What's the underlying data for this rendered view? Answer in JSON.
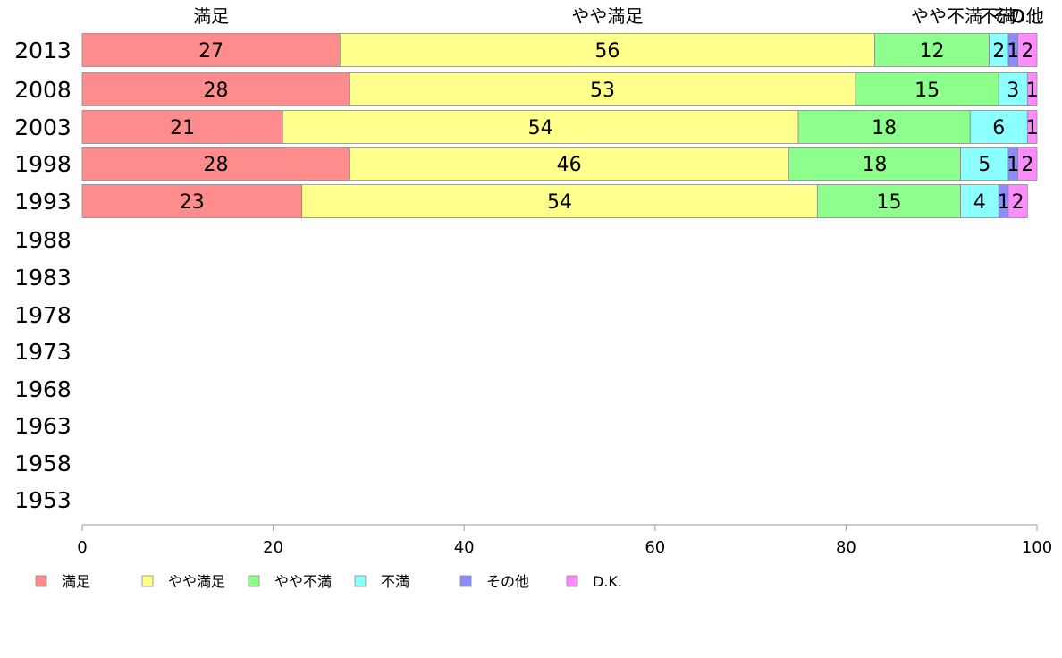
{
  "chart_data": {
    "type": "bar",
    "orientation": "horizontal",
    "stacked": true,
    "categories": [
      "2013",
      "2008",
      "2003",
      "1998",
      "1993",
      "1988",
      "1983",
      "1978",
      "1973",
      "1968",
      "1963",
      "1958",
      "1953"
    ],
    "series": [
      {
        "name": "満足",
        "color": "#ff8c8c",
        "values": [
          27,
          28,
          21,
          28,
          23,
          null,
          null,
          null,
          null,
          null,
          null,
          null,
          null
        ]
      },
      {
        "name": "やや満足",
        "color": "#ffff8c",
        "values": [
          56,
          53,
          54,
          46,
          54,
          null,
          null,
          null,
          null,
          null,
          null,
          null,
          null
        ]
      },
      {
        "name": "やや不満",
        "color": "#8cff8c",
        "values": [
          12,
          15,
          18,
          18,
          15,
          null,
          null,
          null,
          null,
          null,
          null,
          null,
          null
        ]
      },
      {
        "name": "不満",
        "color": "#8cffff",
        "values": [
          2,
          3,
          6,
          5,
          4,
          null,
          null,
          null,
          null,
          null,
          null,
          null,
          null
        ]
      },
      {
        "name": "その他",
        "color": "#8c8cff",
        "values": [
          1,
          0,
          0,
          1,
          1,
          null,
          null,
          null,
          null,
          null,
          null,
          null,
          null
        ]
      },
      {
        "name": "D.K.",
        "color": "#ff8cff",
        "values": [
          2,
          1,
          1,
          2,
          2,
          null,
          null,
          null,
          null,
          null,
          null,
          null,
          null
        ]
      }
    ],
    "top_labels": [
      "満足",
      "やや満足",
      "やや不満",
      "不満",
      "その他",
      "D..."
    ],
    "x_ticks": [
      "0",
      "20",
      "40",
      "60",
      "80",
      "100"
    ],
    "xlim": [
      0,
      100
    ],
    "grid": false,
    "legend_position": "bottom-left"
  }
}
